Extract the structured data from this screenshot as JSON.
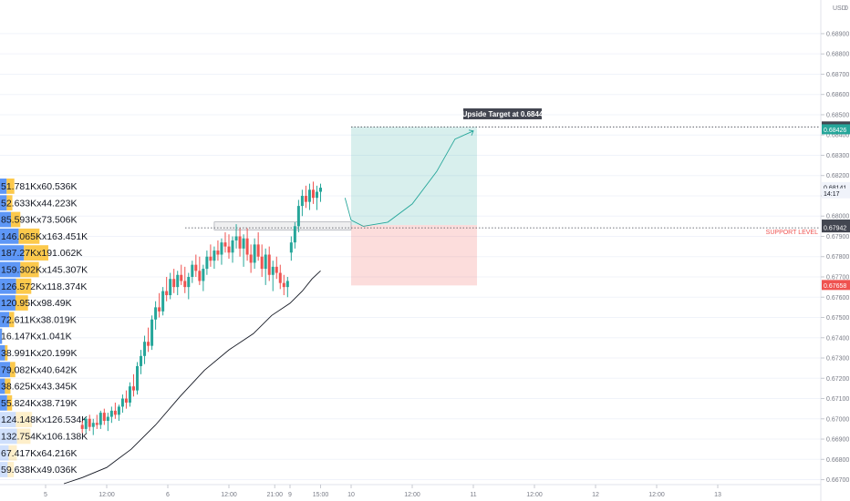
{
  "chart_data": {
    "type": "candlestick",
    "title": "",
    "currency": "USD",
    "axis_corner": "USD",
    "y_ticks": [
      "0.68900",
      "0.68800",
      "0.68700",
      "0.68600",
      "0.68500",
      "0.68400",
      "0.68300",
      "0.68200",
      "0.68100",
      "0.68000",
      "0.67900",
      "0.67800",
      "0.67700",
      "0.67600",
      "0.67500",
      "0.67400",
      "0.67300",
      "0.67200",
      "0.67100",
      "0.67000",
      "0.66900",
      "0.66800",
      "0.66700"
    ],
    "ylim": [
      0.6668,
      0.6903
    ],
    "x_ticks": [
      "5",
      "12:00",
      "6",
      "12:00",
      "21:00",
      "9",
      "15:00",
      "10",
      "12:00",
      "11",
      "12:00",
      "12",
      "12:00",
      "13"
    ],
    "x_tick_days": [
      0,
      0.5,
      1,
      1.5,
      1.875,
      2,
      2.25,
      2.5,
      3,
      3.5,
      4,
      4.5,
      5,
      5.5
    ],
    "price_labels": [
      {
        "text": "0.68440",
        "price": 0.6844,
        "color": "#434651"
      },
      {
        "text": "0.68426",
        "price": 0.68426,
        "color": "#26a69a"
      },
      {
        "text": "0.68141",
        "price": 0.68141,
        "color": "#f0f3fa",
        "text_color": "#131722"
      },
      {
        "text": "14:17",
        "price": 0.6811,
        "color": "#f0f3fa",
        "text_color": "#131722"
      },
      {
        "text": "0.67956",
        "price": 0.67956,
        "color": "#434651"
      },
      {
        "text": "0.67942",
        "price": 0.67942,
        "color": "#434651"
      },
      {
        "text": "0.67658",
        "price": 0.67658,
        "color": "#ef5350"
      }
    ],
    "annotations": [
      {
        "text": "Upside Target at 0.6844",
        "type": "callout"
      },
      {
        "text": "SUPPORT LEVEL",
        "type": "label",
        "color": "#ef5350"
      }
    ],
    "levels": {
      "target": 0.6844,
      "support": 0.67942,
      "entry": 0.67956,
      "stop": 0.67658
    },
    "volume_profile": [
      {
        "label": "51.781Kx60.536K",
        "buy": 51.781,
        "sell": 60.536
      },
      {
        "label": "52.633Kx44.223K",
        "buy": 52.633,
        "sell": 44.223
      },
      {
        "label": "85.593Kx73.506K",
        "buy": 85.593,
        "sell": 73.506
      },
      {
        "label": "146.065Kx163.451K",
        "buy": 146.065,
        "sell": 163.451
      },
      {
        "label": "187.27Kx191.062K",
        "buy": 187.27,
        "sell": 191.062
      },
      {
        "label": "159.302Kx145.307K",
        "buy": 159.302,
        "sell": 145.307
      },
      {
        "label": "126.572Kx118.374K",
        "buy": 126.572,
        "sell": 118.374
      },
      {
        "label": "120.95Kx98.49K",
        "buy": 120.95,
        "sell": 98.49
      },
      {
        "label": "72.611Kx38.019K",
        "buy": 72.611,
        "sell": 38.019
      },
      {
        "label": "16.147Kx1.041K",
        "buy": 16.147,
        "sell": 1.041
      },
      {
        "label": "38.991Kx20.199K",
        "buy": 38.991,
        "sell": 20.199
      },
      {
        "label": "79.082Kx40.642K",
        "buy": 79.082,
        "sell": 40.642
      },
      {
        "label": "38.625Kx43.345K",
        "buy": 38.625,
        "sell": 43.345
      },
      {
        "label": "55.824Kx38.719K",
        "buy": 55.824,
        "sell": 38.719
      },
      {
        "label": "124.148Kx126.534K",
        "buy": 124.148,
        "sell": 126.534
      },
      {
        "label": "132.754Kx106.138K",
        "buy": 132.754,
        "sell": 106.138
      },
      {
        "label": "67.417Kx64.216K",
        "buy": 67.417,
        "sell": 64.216
      },
      {
        "label": "59.638Kx49.036K",
        "buy": 59.638,
        "sell": 49.036
      }
    ],
    "moving_average": [
      [
        0.15,
        0.6668
      ],
      [
        0.3,
        0.6671
      ],
      [
        0.5,
        0.6676
      ],
      [
        0.7,
        0.6685
      ],
      [
        0.9,
        0.6697
      ],
      [
        1.1,
        0.6711
      ],
      [
        1.3,
        0.6724
      ],
      [
        1.5,
        0.6734
      ],
      [
        1.7,
        0.6742
      ],
      [
        1.85,
        0.6751
      ],
      [
        2.0,
        0.6757
      ],
      [
        2.1,
        0.6763
      ],
      [
        2.18,
        0.6769
      ],
      [
        2.25,
        0.6773
      ]
    ],
    "projection": [
      [
        2.45,
        0.6809
      ],
      [
        2.5,
        0.6798
      ],
      [
        2.6,
        0.6795
      ],
      [
        2.8,
        0.6797
      ],
      [
        3.0,
        0.6806
      ],
      [
        3.2,
        0.6822
      ],
      [
        3.35,
        0.6838
      ],
      [
        3.5,
        0.6842
      ]
    ],
    "candles": [
      [
        0.3,
        0.6697,
        0.6699,
        0.6693,
        0.6695
      ],
      [
        0.33,
        0.6695,
        0.6701,
        0.6693,
        0.67
      ],
      [
        0.36,
        0.67,
        0.6702,
        0.6694,
        0.6696
      ],
      [
        0.39,
        0.6696,
        0.67,
        0.6692,
        0.6698
      ],
      [
        0.42,
        0.6698,
        0.6702,
        0.6695,
        0.6697
      ],
      [
        0.45,
        0.6697,
        0.6704,
        0.6695,
        0.6703
      ],
      [
        0.48,
        0.6703,
        0.6705,
        0.6697,
        0.6699
      ],
      [
        0.51,
        0.6699,
        0.6703,
        0.6694,
        0.6701
      ],
      [
        0.54,
        0.6701,
        0.6706,
        0.6698,
        0.6704
      ],
      [
        0.57,
        0.6704,
        0.6708,
        0.67,
        0.6702
      ],
      [
        0.6,
        0.6702,
        0.6707,
        0.6699,
        0.6706
      ],
      [
        0.63,
        0.6706,
        0.6712,
        0.6703,
        0.671
      ],
      [
        0.66,
        0.671,
        0.6714,
        0.6705,
        0.6708
      ],
      [
        0.69,
        0.6708,
        0.6718,
        0.6706,
        0.6716
      ],
      [
        0.72,
        0.6716,
        0.6722,
        0.6711,
        0.6714
      ],
      [
        0.75,
        0.6714,
        0.6728,
        0.6712,
        0.6726
      ],
      [
        0.78,
        0.6726,
        0.6734,
        0.6722,
        0.6731
      ],
      [
        0.81,
        0.6731,
        0.6741,
        0.6727,
        0.6738
      ],
      [
        0.84,
        0.6738,
        0.6745,
        0.6733,
        0.6736
      ],
      [
        0.87,
        0.6736,
        0.6751,
        0.6734,
        0.6749
      ],
      [
        0.9,
        0.6749,
        0.6758,
        0.6744,
        0.6755
      ],
      [
        0.93,
        0.6755,
        0.6762,
        0.675,
        0.6753
      ],
      [
        0.96,
        0.6753,
        0.6765,
        0.6751,
        0.6763
      ],
      [
        0.99,
        0.6763,
        0.677,
        0.6758,
        0.6761
      ],
      [
        1.02,
        0.6761,
        0.6772,
        0.6759,
        0.6769
      ],
      [
        1.05,
        0.6769,
        0.6774,
        0.6762,
        0.6765
      ],
      [
        1.08,
        0.6765,
        0.6773,
        0.6761,
        0.6771
      ],
      [
        1.11,
        0.6771,
        0.6776,
        0.6766,
        0.6768
      ],
      [
        1.14,
        0.6768,
        0.6775,
        0.6762,
        0.6765
      ],
      [
        1.17,
        0.6765,
        0.6772,
        0.6759,
        0.677
      ],
      [
        1.2,
        0.677,
        0.6778,
        0.6767,
        0.6776
      ],
      [
        1.23,
        0.6776,
        0.6781,
        0.677,
        0.6773
      ],
      [
        1.26,
        0.6773,
        0.678,
        0.6766,
        0.6768
      ],
      [
        1.29,
        0.6768,
        0.6776,
        0.6763,
        0.6774
      ],
      [
        1.32,
        0.6774,
        0.6783,
        0.6771,
        0.678
      ],
      [
        1.35,
        0.678,
        0.6786,
        0.6775,
        0.6778
      ],
      [
        1.38,
        0.6778,
        0.6785,
        0.6774,
        0.6783
      ],
      [
        1.41,
        0.6783,
        0.6788,
        0.6778,
        0.6781
      ],
      [
        1.44,
        0.6781,
        0.6789,
        0.6776,
        0.6787
      ],
      [
        1.47,
        0.6787,
        0.6792,
        0.6782,
        0.6785
      ],
      [
        1.5,
        0.6785,
        0.6791,
        0.6779,
        0.6782
      ],
      [
        1.53,
        0.6782,
        0.679,
        0.6777,
        0.6788
      ],
      [
        1.56,
        0.6788,
        0.6796,
        0.6784,
        0.679
      ],
      [
        1.59,
        0.679,
        0.6794,
        0.678,
        0.6784
      ],
      [
        1.62,
        0.6784,
        0.6791,
        0.6775,
        0.6789
      ],
      [
        1.65,
        0.6789,
        0.6794,
        0.6778,
        0.6781
      ],
      [
        1.68,
        0.6781,
        0.6786,
        0.6772,
        0.6777
      ],
      [
        1.71,
        0.6777,
        0.6789,
        0.6774,
        0.6786
      ],
      [
        1.74,
        0.6786,
        0.6792,
        0.6778,
        0.678
      ],
      [
        1.77,
        0.678,
        0.6786,
        0.677,
        0.6774
      ],
      [
        1.8,
        0.6774,
        0.6784,
        0.6766,
        0.6781
      ],
      [
        1.83,
        0.6781,
        0.6785,
        0.6768,
        0.6771
      ],
      [
        1.86,
        0.6771,
        0.6778,
        0.6763,
        0.6775
      ],
      [
        1.89,
        0.6775,
        0.678,
        0.6769,
        0.6772
      ],
      [
        1.92,
        0.6772,
        0.6776,
        0.6764,
        0.6767
      ],
      [
        1.95,
        0.6767,
        0.6771,
        0.6761,
        0.6765
      ],
      [
        1.98,
        0.6765,
        0.677,
        0.676,
        0.6768
      ],
      [
        2.01,
        0.6782,
        0.679,
        0.6778,
        0.6787
      ],
      [
        2.04,
        0.6787,
        0.6797,
        0.6784,
        0.6795
      ],
      [
        2.07,
        0.6795,
        0.6808,
        0.6792,
        0.6805
      ],
      [
        2.1,
        0.6805,
        0.6813,
        0.68,
        0.681
      ],
      [
        2.13,
        0.681,
        0.6815,
        0.6804,
        0.6807
      ],
      [
        2.16,
        0.6807,
        0.6816,
        0.6803,
        0.6813
      ],
      [
        2.19,
        0.6813,
        0.6817,
        0.6806,
        0.6809
      ],
      [
        2.22,
        0.6809,
        0.6815,
        0.6803,
        0.6812
      ],
      [
        2.25,
        0.6812,
        0.6816,
        0.6807,
        0.6814
      ]
    ]
  }
}
